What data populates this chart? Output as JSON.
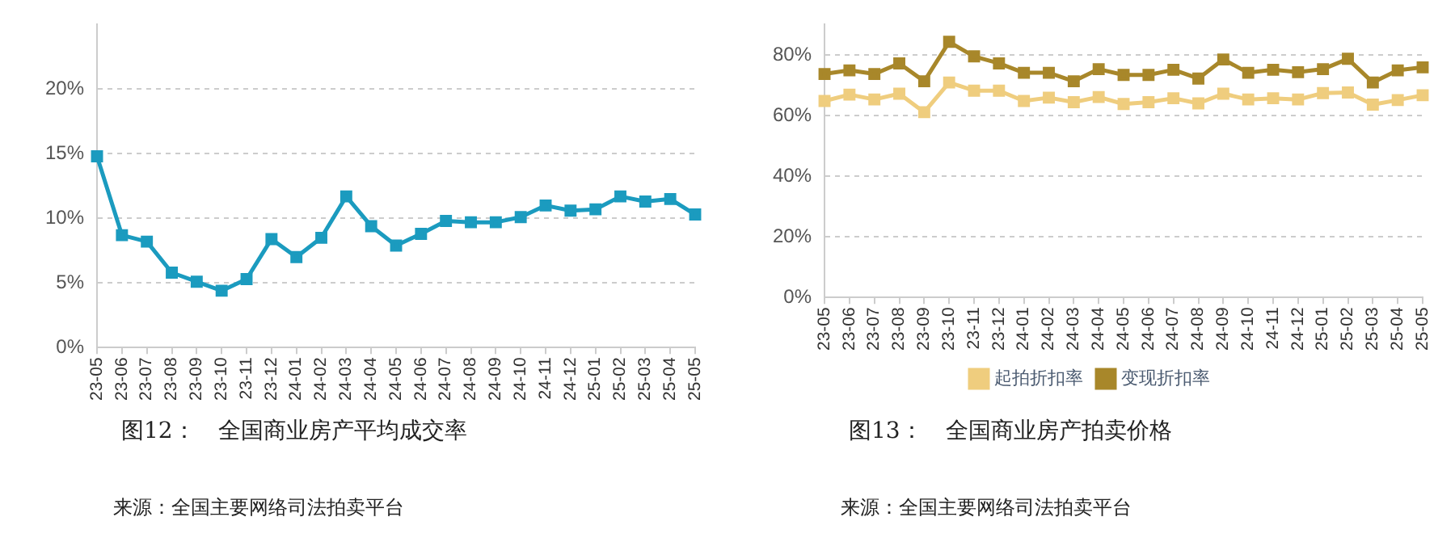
{
  "chart_data": [
    {
      "type": "line",
      "title": "图12：　全国商业房产平均成交率",
      "annotations": [
        "来源：全国主要网络司法拍卖平台"
      ],
      "categories": [
        "23-05",
        "23-06",
        "23-07",
        "23-08",
        "23-09",
        "23-10",
        "23-11",
        "23-12",
        "24-01",
        "24-02",
        "24-03",
        "24-04",
        "24-05",
        "24-06",
        "24-07",
        "24-08",
        "24-09",
        "24-10",
        "24-11",
        "24-12",
        "25-01",
        "25-02",
        "25-03",
        "25-04",
        "25-05"
      ],
      "series": [
        {
          "color": "#1b9bbf",
          "values": [
            14.8,
            8.7,
            8.2,
            5.8,
            5.1,
            4.4,
            5.3,
            8.4,
            7.0,
            8.5,
            11.7,
            9.4,
            7.9,
            8.8,
            9.8,
            9.7,
            9.7,
            10.1,
            11.0,
            10.6,
            10.7,
            11.7,
            11.3,
            11.5,
            10.3
          ]
        }
      ],
      "ylim": [
        0,
        25
      ],
      "yticks": [
        {
          "value": 0,
          "label": "0%"
        },
        {
          "value": 5,
          "label": "5%"
        },
        {
          "value": 10,
          "label": "10%"
        },
        {
          "value": 15,
          "label": "15%"
        },
        {
          "value": 20,
          "label": "20%"
        }
      ],
      "grid": "y",
      "legend": false,
      "marker": "square",
      "line_style": "solid"
    },
    {
      "type": "line",
      "title": "图13：　全国商业房产拍卖价格",
      "annotations": [
        "来源：全国主要网络司法拍卖平台"
      ],
      "categories": [
        "23-05",
        "23-06",
        "23-07",
        "23-08",
        "23-09",
        "23-10",
        "23-11",
        "23-12",
        "24-01",
        "24-02",
        "24-03",
        "24-04",
        "24-05",
        "24-06",
        "24-07",
        "24-08",
        "24-09",
        "24-10",
        "24-11",
        "24-12",
        "25-01",
        "25-02",
        "25-03",
        "25-04",
        "25-05"
      ],
      "series": [
        {
          "name": "起拍折扣率",
          "color": "#efcd7e",
          "values": [
            64.8,
            66.9,
            65.3,
            67.2,
            61.1,
            70.9,
            68.2,
            68.2,
            64.8,
            65.9,
            64.4,
            66.1,
            63.8,
            64.4,
            65.7,
            64.0,
            67.2,
            65.3,
            65.7,
            65.3,
            67.4,
            67.6,
            63.6,
            65.1,
            66.7
          ]
        },
        {
          "name": "变现折扣率",
          "color": "#a8872a",
          "values": [
            73.7,
            74.9,
            73.7,
            77.2,
            71.3,
            84.3,
            79.5,
            77.2,
            74.1,
            74.1,
            71.3,
            75.3,
            73.4,
            73.4,
            75.1,
            72.2,
            78.5,
            74.1,
            75.1,
            74.3,
            75.3,
            78.7,
            70.9,
            74.9,
            75.9
          ]
        }
      ],
      "ylim": [
        0,
        90
      ],
      "yticks": [
        {
          "value": 0,
          "label": "0%"
        },
        {
          "value": 20,
          "label": "20%"
        },
        {
          "value": 40,
          "label": "40%"
        },
        {
          "value": 60,
          "label": "60%"
        },
        {
          "value": 80,
          "label": "80%"
        }
      ],
      "grid": "y",
      "legend": "bottom",
      "marker": "square",
      "line_style": "solid"
    }
  ]
}
